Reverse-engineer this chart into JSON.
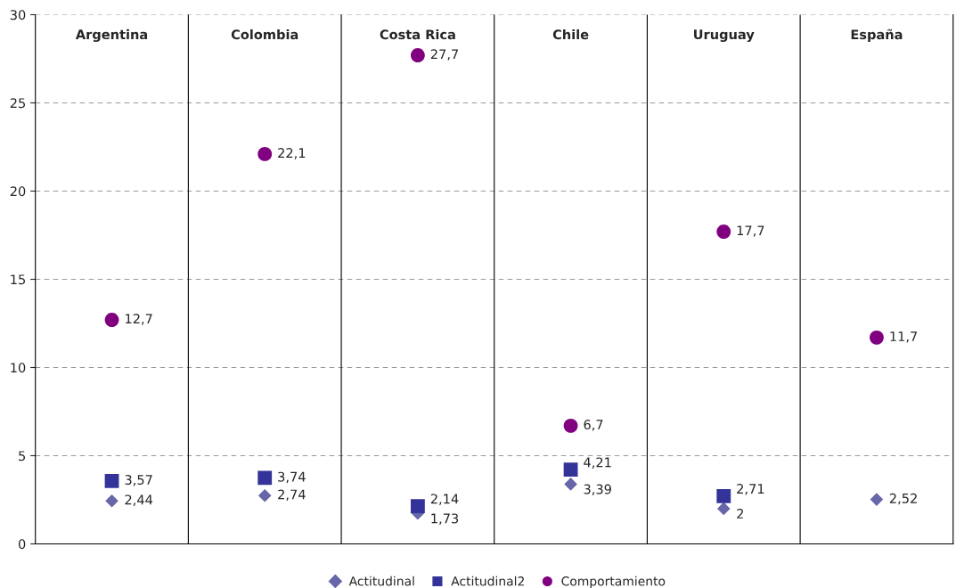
{
  "chart_data": {
    "type": "scatter",
    "categories": [
      "Argentina",
      "Colombia",
      "Costa Rica",
      "Chile",
      "Uruguay",
      "España"
    ],
    "series": [
      {
        "name": "Actitudinal",
        "color": "#6666a8",
        "marker": "diamond",
        "values": [
          2.44,
          2.74,
          1.73,
          3.39,
          2,
          2.52
        ],
        "value_labels": [
          "2,44",
          "2,74",
          "1,73",
          "3,39",
          "2",
          "2,52"
        ]
      },
      {
        "name": "Actitudinal2",
        "color": "#333399",
        "marker": "square",
        "values": [
          3.57,
          3.74,
          2.14,
          4.21,
          2.71,
          null
        ],
        "value_labels": [
          "3,57",
          "3,74",
          "2,14",
          "4,21",
          "2,71",
          null
        ]
      },
      {
        "name": "Comportamiento",
        "color": "#800080",
        "marker": "circle",
        "values": [
          12.7,
          22.1,
          27.7,
          6.7,
          17.7,
          11.7
        ],
        "value_labels": [
          "12,7",
          "22,1",
          "27,7",
          "6,7",
          "17,7",
          "11,7"
        ]
      }
    ],
    "ylim": [
      0,
      30
    ],
    "yticks": [
      0,
      5,
      10,
      15,
      20,
      25,
      30
    ],
    "grid": "y",
    "legend": "bottom"
  }
}
